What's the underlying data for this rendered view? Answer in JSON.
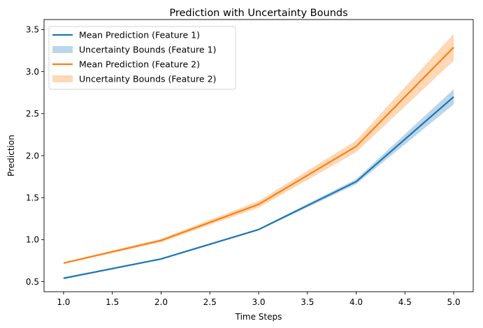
{
  "chart_data": {
    "type": "line",
    "title": "Prediction with Uncertainty Bounds",
    "xlabel": "Time Steps",
    "ylabel": "Prediction",
    "xlim": [
      0.8,
      5.2
    ],
    "ylim": [
      0.38,
      3.62
    ],
    "x_ticks": [
      "1.0",
      "1.5",
      "2.0",
      "2.5",
      "3.0",
      "3.5",
      "4.0",
      "4.5",
      "5.0"
    ],
    "y_ticks": [
      "0.5",
      "1.0",
      "1.5",
      "2.0",
      "2.5",
      "3.0",
      "3.5"
    ],
    "grid": false,
    "legend_position": "top-left",
    "x": [
      1.0,
      2.0,
      3.0,
      4.0,
      5.0
    ],
    "series": [
      {
        "name": "Mean Prediction (Feature 1)",
        "band_name": "Uncertainty Bounds (Feature 1)",
        "color": "#1f77b4",
        "band_color": "#1f77b4",
        "values": [
          0.54,
          0.77,
          1.12,
          1.69,
          2.7
        ],
        "lower": [
          0.53,
          0.76,
          1.11,
          1.66,
          2.61
        ],
        "upper": [
          0.55,
          0.78,
          1.13,
          1.72,
          2.79
        ]
      },
      {
        "name": "Mean Prediction (Feature 2)",
        "band_name": "Uncertainty Bounds (Feature 2)",
        "color": "#ff7f0e",
        "band_color": "#ff7f0e",
        "values": [
          0.72,
          0.99,
          1.42,
          2.11,
          3.29
        ],
        "lower": [
          0.71,
          0.97,
          1.38,
          2.04,
          3.13
        ],
        "upper": [
          0.73,
          1.01,
          1.46,
          2.18,
          3.45
        ]
      }
    ]
  }
}
